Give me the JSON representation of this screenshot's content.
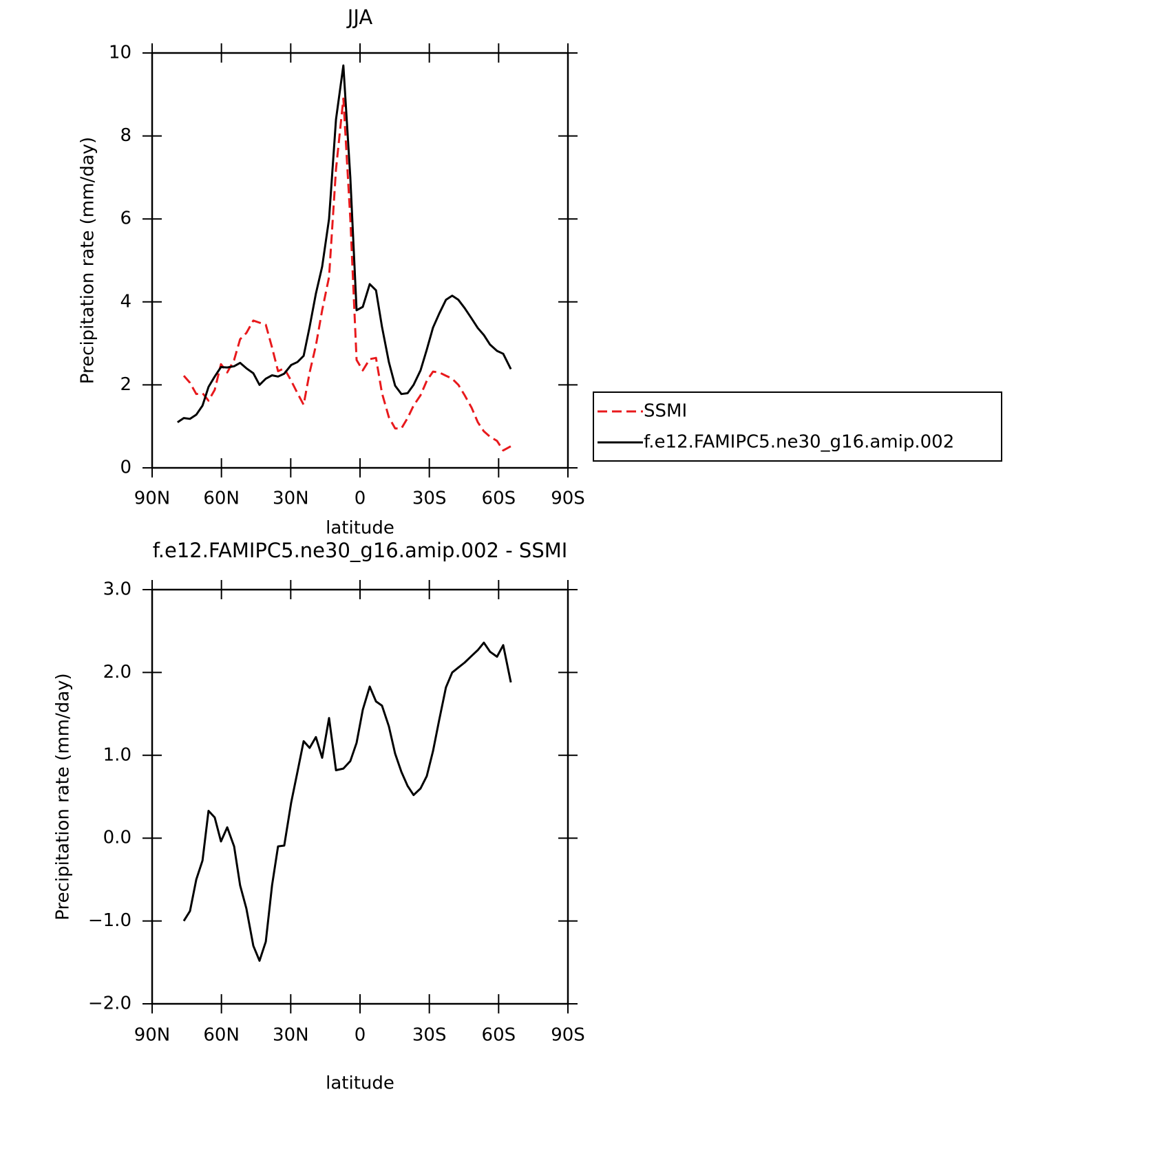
{
  "chart_data": [
    {
      "type": "line",
      "title": "JJA",
      "xlabel": "latitude",
      "ylabel": "Precipitation rate (mm/day)",
      "x": [
        79.0,
        76.3,
        73.6,
        70.9,
        68.2,
        65.6,
        62.9,
        60.2,
        57.5,
        54.5,
        51.9,
        49.2,
        46.2,
        43.5,
        40.8,
        38.1,
        35.5,
        32.8,
        29.8,
        27.1,
        24.4,
        21.8,
        19.1,
        16.4,
        13.4,
        10.4,
        7.2,
        4.2,
        1.5,
        -1.2,
        -4.2,
        -6.9,
        -9.5,
        -12.5,
        -15.2,
        -17.9,
        -20.6,
        -23.2,
        -26.2,
        -28.9,
        -31.6,
        -34.3,
        -37.2,
        -39.9,
        -42.6,
        -45.3,
        -48.3,
        -51.0,
        -53.6,
        -56.3,
        -59.3,
        -62.0,
        -65.3
      ],
      "series": [
        {
          "name": "SSMI",
          "color": "#e8191c",
          "dash": true,
          "values": [
            null,
            2.22,
            2.05,
            1.78,
            1.8,
            1.62,
            1.88,
            2.5,
            2.3,
            2.6,
            3.1,
            3.25,
            3.55,
            3.5,
            3.45,
            2.9,
            2.33,
            2.4,
            2.1,
            1.8,
            1.52,
            2.3,
            2.95,
            3.8,
            4.6,
            7.2,
            8.9,
            6.0,
            2.6,
            2.35,
            2.62,
            2.65,
            1.8,
            1.22,
            0.95,
            0.95,
            1.2,
            1.5,
            1.75,
            2.1,
            2.32,
            2.3,
            2.22,
            2.15,
            2.0,
            1.75,
            1.45,
            1.1,
            0.88,
            0.75,
            0.65,
            0.42,
            0.52
          ]
        },
        {
          "name": "f.e12.FAMIPC5.ne30_g16.amip.002",
          "color": "#000000",
          "dash": false,
          "values": [
            1.1,
            1.2,
            1.18,
            1.28,
            1.5,
            1.95,
            2.2,
            2.43,
            2.42,
            2.45,
            2.53,
            2.4,
            2.28,
            2.0,
            2.15,
            2.23,
            2.2,
            2.27,
            2.48,
            2.55,
            2.7,
            3.4,
            4.2,
            4.85,
            6.0,
            8.4,
            9.7,
            7.0,
            3.8,
            3.88,
            4.43,
            4.28,
            3.4,
            2.55,
            1.98,
            1.78,
            1.8,
            2.0,
            2.35,
            2.85,
            3.38,
            3.72,
            4.05,
            4.15,
            4.05,
            3.85,
            3.6,
            3.37,
            3.2,
            2.97,
            2.82,
            2.75,
            2.38
          ]
        }
      ],
      "xlim": [
        90,
        -90
      ],
      "xticks": [
        {
          "value": 90,
          "label": "90N"
        },
        {
          "value": 60,
          "label": "60N"
        },
        {
          "value": 30,
          "label": "30N"
        },
        0,
        {
          "value": -30,
          "label": "30S"
        },
        {
          "value": -60,
          "label": "60S"
        },
        {
          "value": -90,
          "label": "90S"
        }
      ],
      "ylim": [
        0,
        10
      ],
      "yticks": [
        0,
        2,
        4,
        6,
        8,
        10
      ],
      "legend": "right"
    },
    {
      "type": "line",
      "title": "f.e12.FAMIPC5.ne30_g16.amip.002 - SSMI",
      "xlabel": "latitude",
      "ylabel": "Precipitation rate (mm/day)",
      "x": [
        79.0,
        76.3,
        73.6,
        70.9,
        68.2,
        65.6,
        62.9,
        60.2,
        57.5,
        54.5,
        51.9,
        49.2,
        46.2,
        43.5,
        40.8,
        38.1,
        35.5,
        32.8,
        29.8,
        27.1,
        24.4,
        21.8,
        19.1,
        16.4,
        13.4,
        10.4,
        7.2,
        4.2,
        1.5,
        -1.2,
        -4.2,
        -6.9,
        -9.5,
        -12.5,
        -15.2,
        -17.9,
        -20.6,
        -23.2,
        -26.2,
        -28.9,
        -31.6,
        -34.3,
        -37.2,
        -39.9,
        -42.6,
        -45.3,
        -48.3,
        -51.0,
        -53.6,
        -56.3,
        -59.3,
        -62.0,
        -65.3
      ],
      "series": [
        {
          "color": "#000000",
          "dash": false,
          "values": [
            null,
            -1.0,
            -0.88,
            -0.5,
            -0.27,
            0.33,
            0.25,
            -0.04,
            0.13,
            -0.1,
            -0.57,
            -0.85,
            -1.3,
            -1.48,
            -1.25,
            -0.57,
            -0.1,
            -0.09,
            0.43,
            0.8,
            1.17,
            1.09,
            1.22,
            0.97,
            1.45,
            0.82,
            0.84,
            0.93,
            1.15,
            1.55,
            1.83,
            1.65,
            1.6,
            1.35,
            1.02,
            0.8,
            0.63,
            0.52,
            0.6,
            0.75,
            1.05,
            1.43,
            1.82,
            2.0,
            2.06,
            2.12,
            2.2,
            2.27,
            2.36,
            2.25,
            2.19,
            2.33,
            1.88
          ]
        }
      ],
      "xlim": [
        90,
        -90
      ],
      "xticks": [
        {
          "value": 90,
          "label": "90N"
        },
        {
          "value": 60,
          "label": "60N"
        },
        {
          "value": 30,
          "label": "30N"
        },
        0,
        {
          "value": -30,
          "label": "30S"
        },
        {
          "value": -60,
          "label": "60S"
        },
        {
          "value": -90,
          "label": "90S"
        }
      ],
      "ylim": [
        -2,
        3
      ],
      "yticks": [
        {
          "value": -2,
          "label": "−2.0"
        },
        {
          "value": -1,
          "label": "−1.0"
        },
        {
          "value": 0,
          "label": "0.0"
        },
        {
          "value": 1,
          "label": "1.0"
        },
        {
          "value": 2,
          "label": "2.0"
        },
        {
          "value": 3,
          "label": "3.0"
        }
      ]
    }
  ]
}
